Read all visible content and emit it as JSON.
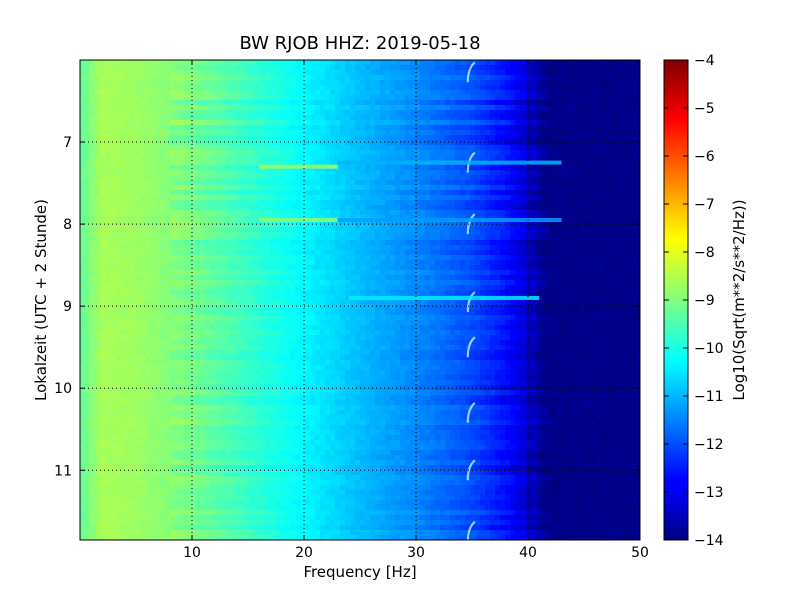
{
  "chart_data": {
    "type": "heatmap",
    "title": "BW RJOB HHZ: 2019-05-18",
    "xlabel": "Frequency [Hz]",
    "ylabel": "Lokalzeit (UTC + 2 Stunde)",
    "xlim": [
      0,
      50
    ],
    "ylim": [
      6.0,
      11.85
    ],
    "y_inverted": true,
    "x_ticks": [
      10,
      20,
      30,
      40,
      50
    ],
    "y_ticks": [
      7,
      8,
      9,
      10,
      11
    ],
    "grid": true,
    "colormap": "jet",
    "colorbar": {
      "label": "Log10(Sqrt(m**2/s**2/Hz))",
      "range": [
        -14,
        -4
      ],
      "ticks": [
        -4,
        -5,
        -6,
        -7,
        -8,
        -9,
        -10,
        -11,
        -12,
        -13,
        -14
      ]
    },
    "spectrum_profile": {
      "frequency_hz": [
        0,
        2,
        5,
        10,
        15,
        20,
        25,
        30,
        35,
        38,
        40,
        41.5,
        50
      ],
      "level": [
        -9.3,
        -8.6,
        -8.7,
        -9.1,
        -9.7,
        -10.3,
        -10.9,
        -11.4,
        -12.0,
        -12.6,
        -13.2,
        -13.9,
        -13.9
      ]
    },
    "features": [
      {
        "type": "dropout_arc",
        "frequency_hz": 34.8,
        "times": [
          6.15,
          7.25,
          8.0,
          8.95,
          9.5,
          10.3,
          11.0,
          11.75
        ]
      },
      {
        "type": "bright_band",
        "time": 7.3,
        "frequency_range": [
          16,
          23
        ],
        "level": -8.6
      },
      {
        "type": "bright_band",
        "time": 7.95,
        "frequency_range": [
          16,
          23
        ],
        "level": -8.8
      },
      {
        "type": "bright_band",
        "time": 7.25,
        "frequency_range": [
          23,
          43
        ],
        "level": -11.0
      },
      {
        "type": "bright_band",
        "time": 7.95,
        "frequency_range": [
          23,
          43
        ],
        "level": -11.2
      },
      {
        "type": "bright_band",
        "time": 8.9,
        "frequency_range": [
          24,
          41
        ],
        "level": -10.4
      }
    ]
  }
}
